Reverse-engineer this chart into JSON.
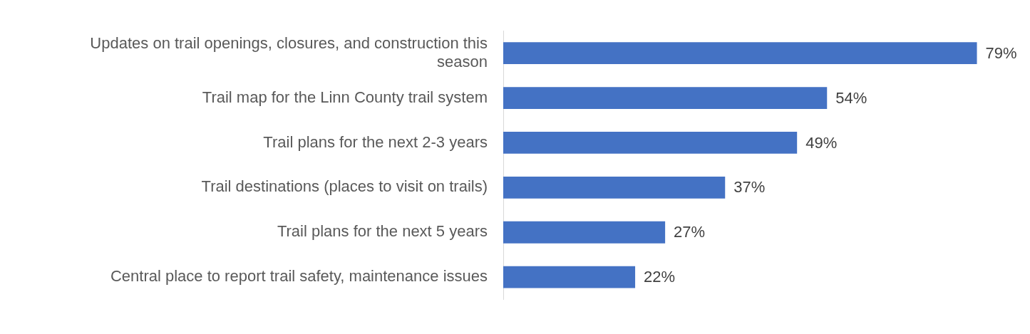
{
  "chart_data": {
    "type": "bar",
    "orientation": "horizontal",
    "categories": [
      "Updates on trail openings, closures, and construction this season",
      "Trail map for the Linn County trail system",
      "Trail plans for the next 2-3 years",
      "Trail destinations (places to visit on trails)",
      "Trail plans for the next 5 years",
      "Central place to report trail safety, maintenance issues"
    ],
    "values": [
      79,
      54,
      49,
      37,
      27,
      22
    ],
    "value_labels": [
      "79%",
      "54%",
      "49%",
      "37%",
      "27%",
      "22%"
    ],
    "color": "#4472c4"
  }
}
